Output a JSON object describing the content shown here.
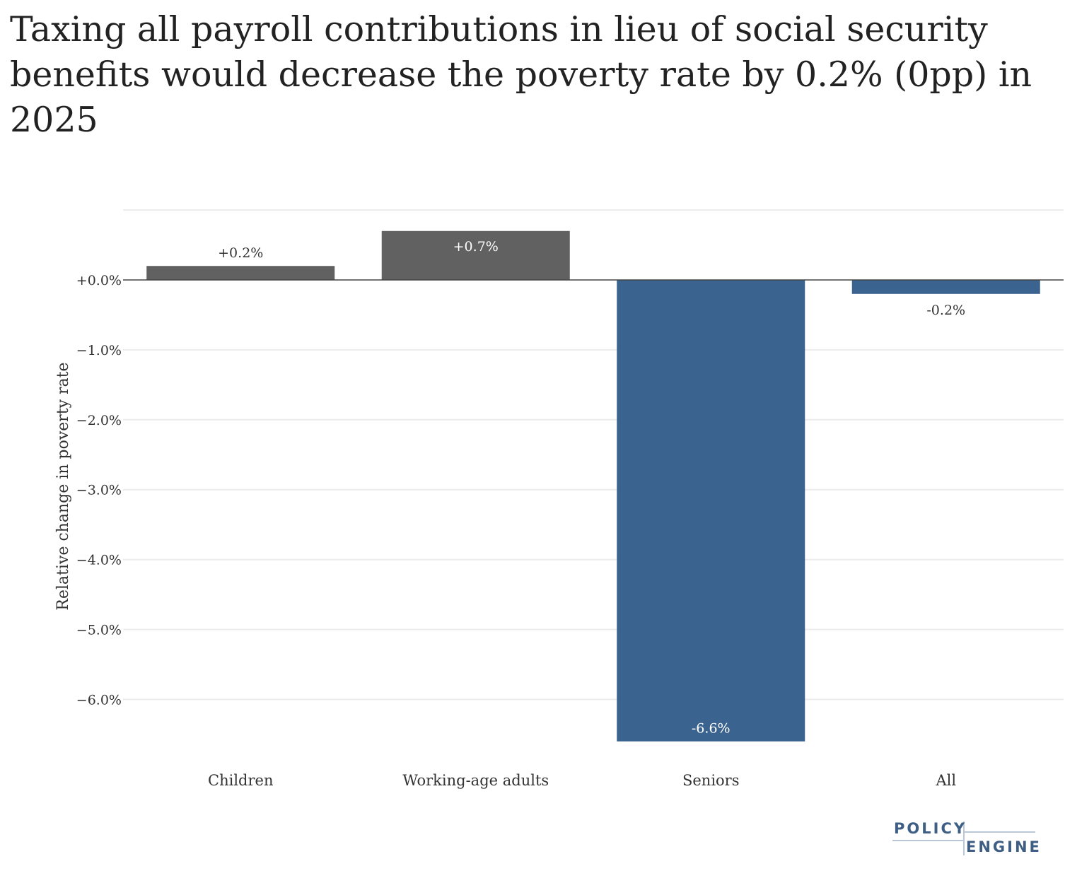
{
  "chart_data": {
    "type": "bar",
    "title": "Taxing all payroll contributions in lieu of social security benefits would decrease the poverty rate by 0.2% (0pp) in 2025",
    "xlabel": "",
    "ylabel": "Relative change in poverty rate",
    "categories": [
      "Children",
      "Working-age adults",
      "Seniors",
      "All"
    ],
    "values": [
      0.2,
      0.7,
      -6.6,
      -0.2
    ],
    "value_labels": [
      "+0.2%",
      "+0.7%",
      "-6.6%",
      "-0.2%"
    ],
    "bar_colors": [
      "#616161",
      "#616161",
      "#3b638f",
      "#3b638f"
    ],
    "yticks": [
      0,
      -1,
      -2,
      -3,
      -4,
      -5,
      -6
    ],
    "ytick_labels": [
      "+0.0%",
      "−1.0%",
      "−2.0%",
      "−3.0%",
      "−4.0%",
      "−5.0%",
      "−6.0%"
    ],
    "ylim": [
      -6.6,
      1.0
    ],
    "grid": true,
    "legend": "none"
  },
  "branding": {
    "logo_line1": "POLICY",
    "logo_line2": "ENGINE",
    "logo_color": "#3f5e84"
  }
}
